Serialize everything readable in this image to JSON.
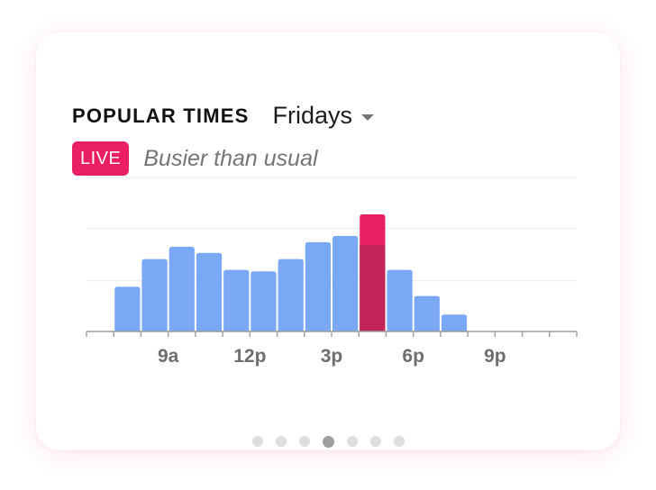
{
  "header": {
    "title": "POPULAR TIMES",
    "day": "Fridays"
  },
  "live": {
    "badge": "LIVE",
    "status": "Busier than usual"
  },
  "colors": {
    "bar": "#7ba8f5",
    "live_bar": "#c2245a",
    "live_bar_top": "#e91e63",
    "axis": "#9e9e9e",
    "grid": "#ebebeb",
    "tick_label": "#6e6e6e"
  },
  "chart_data": {
    "type": "bar",
    "title": "POPULAR TIMES",
    "hours": [
      6,
      7,
      8,
      9,
      10,
      11,
      12,
      13,
      14,
      15,
      16,
      17,
      18,
      19,
      20,
      21,
      22,
      23
    ],
    "values": [
      0,
      29,
      47,
      55,
      51,
      40,
      39,
      47,
      58,
      62,
      56,
      40,
      23,
      11,
      0,
      0,
      0,
      0
    ],
    "live": {
      "hour": 16,
      "value": 76
    },
    "tick_labels": [
      {
        "hour": 9,
        "label": "9a"
      },
      {
        "hour": 12,
        "label": "12p"
      },
      {
        "hour": 15,
        "label": "3p"
      },
      {
        "hour": 18,
        "label": "6p"
      },
      {
        "hour": 21,
        "label": "9p"
      }
    ],
    "ylim": [
      0,
      100
    ],
    "gridlines": [
      33,
      67,
      100
    ]
  },
  "pagination": {
    "count": 7,
    "active_index": 3
  }
}
